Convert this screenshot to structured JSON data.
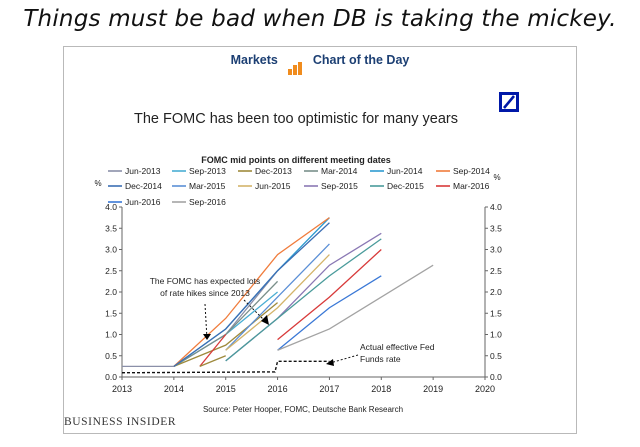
{
  "headline": "Things must be bad when DB is taking the mickey.",
  "brand": {
    "left": "Markets",
    "right": "Chart of the Day"
  },
  "footer": "BUSINESS INSIDER",
  "colors": {
    "brand_blue": "#1c3f73",
    "brand_orange": "#f08c1e",
    "db_blue": "#0018a8"
  },
  "icons": [
    "business-insider-bar-icon",
    "deutsche-bank-logo"
  ],
  "chart_data": {
    "type": "line",
    "title": "The FOMC has been too optimistic for many years",
    "legend_title": "FOMC mid points on different meeting dates",
    "ylabel_left": "%",
    "ylabel_right": "%",
    "source": "Source: Peter Hooper, FOMC, Deutsche Bank Research",
    "xlim": [
      2013,
      2020
    ],
    "ylim": [
      0,
      4
    ],
    "x_ticks": [
      "2013",
      "2014",
      "2015",
      "2016",
      "2017",
      "2018",
      "2019",
      "2020"
    ],
    "y_ticks": [
      "0.0",
      "0.5",
      "1.0",
      "1.5",
      "2.0",
      "2.5",
      "3.0",
      "3.5",
      "4.0"
    ],
    "grid": false,
    "legend_position": "top",
    "series": [
      {
        "name": "Jun-2013",
        "color": "#8a8fa8",
        "x": [
          2013,
          2014,
          2015,
          2016
        ],
        "y": [
          0.25,
          0.25,
          1.0,
          2.5
        ]
      },
      {
        "name": "Sep-2013",
        "color": "#4aaed3",
        "x": [
          2014,
          2015,
          2016
        ],
        "y": [
          0.25,
          1.0,
          2.0
        ]
      },
      {
        "name": "Dec-2013",
        "color": "#9e8a3c",
        "x": [
          2014,
          2015,
          2016
        ],
        "y": [
          0.25,
          0.75,
          1.75
        ]
      },
      {
        "name": "Mar-2014",
        "color": "#7a8f8a",
        "x": [
          2014,
          2015,
          2016
        ],
        "y": [
          0.25,
          1.0,
          2.25
        ]
      },
      {
        "name": "Jun-2014",
        "color": "#2e9bd0",
        "x": [
          2014,
          2015,
          2016,
          2017
        ],
        "y": [
          0.25,
          1.13,
          2.5,
          3.75
        ]
      },
      {
        "name": "Sep-2014",
        "color": "#f07c3c",
        "x": [
          2014,
          2015,
          2016,
          2017
        ],
        "y": [
          0.25,
          1.38,
          2.88,
          3.75
        ]
      },
      {
        "name": "Dec-2014",
        "color": "#3c6fb4",
        "x": [
          2014,
          2015,
          2016,
          2017
        ],
        "y": [
          0.25,
          1.13,
          2.5,
          3.63
        ]
      },
      {
        "name": "Mar-2015",
        "color": "#5b8fd6",
        "x": [
          2015,
          2016,
          2017
        ],
        "y": [
          0.63,
          1.88,
          3.13
        ]
      },
      {
        "name": "Jun-2015",
        "color": "#d4b46a",
        "x": [
          2015,
          2016,
          2017
        ],
        "y": [
          0.63,
          1.63,
          2.88
        ]
      },
      {
        "name": "Sep-2015",
        "color": "#8a78b4",
        "x": [
          2015,
          2016,
          2017,
          2018
        ],
        "y": [
          0.38,
          1.38,
          2.63,
          3.38
        ]
      },
      {
        "name": "Dec-2015",
        "color": "#4a9b9b",
        "x": [
          2015,
          2016,
          2017,
          2018
        ],
        "y": [
          0.38,
          1.38,
          2.38,
          3.25
        ]
      },
      {
        "name": "Mar-2016",
        "color": "#d83a3a",
        "x": [
          2016,
          2017,
          2018
        ],
        "y": [
          0.88,
          1.88,
          3.0
        ]
      },
      {
        "name": "Jun-2016",
        "color": "#3a78d6",
        "x": [
          2016,
          2017,
          2018
        ],
        "y": [
          0.63,
          1.63,
          2.38
        ]
      },
      {
        "name": "Sep-2016",
        "color": "#a3a3a3",
        "x": [
          2016,
          2017,
          2018,
          2019
        ],
        "y": [
          0.63,
          1.13,
          1.88,
          2.63
        ]
      }
    ],
    "early_segments": [
      {
        "color": "#d83a3a",
        "x": [
          2014.5,
          2015
        ],
        "y": [
          0.25,
          1.0
        ]
      },
      {
        "color": "#9e8a3c",
        "x": [
          2014.5,
          2015
        ],
        "y": [
          0.25,
          0.5
        ]
      }
    ],
    "fed_funds": {
      "name": "Actual effective Fed Funds rate",
      "x": [
        2013,
        2015.95,
        2016,
        2016.9,
        2017
      ],
      "y": [
        0.1,
        0.12,
        0.37,
        0.37,
        0.37
      ]
    },
    "annotations": [
      {
        "text_lines": [
          "The FOMC has expected lots",
          "of rate hikes since 2013"
        ]
      },
      {
        "text_lines": [
          "Actual effective Fed",
          "Funds rate"
        ]
      }
    ]
  }
}
